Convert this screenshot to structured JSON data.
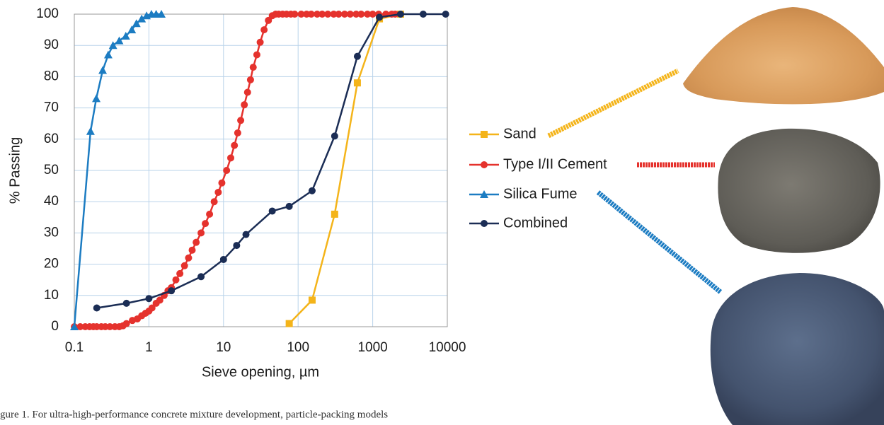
{
  "chart_data": {
    "type": "line",
    "x_scale": "log",
    "xlabel": "Sieve opening, µm",
    "ylabel": "% Passing",
    "xlim": [
      0.1,
      10000
    ],
    "xticks": [
      0.1,
      1,
      10,
      100,
      1000,
      10000
    ],
    "ylim": [
      0,
      100
    ],
    "yticks": [
      0,
      10,
      20,
      30,
      40,
      50,
      60,
      70,
      80,
      90,
      100
    ],
    "grid": true,
    "legend": "right",
    "series": [
      {
        "name": "Sand",
        "color": "#f4b41a",
        "marker": "square",
        "x": [
          76,
          154,
          309,
          623,
          1230,
          2360
        ],
        "values": [
          1,
          8.5,
          36,
          78,
          98.5,
          100
        ]
      },
      {
        "name": "Type I/II Cement",
        "color": "#e5322d",
        "marker": "circle",
        "x": [
          0.1,
          0.12,
          0.14,
          0.16,
          0.18,
          0.2,
          0.23,
          0.26,
          0.3,
          0.35,
          0.4,
          0.45,
          0.5,
          0.6,
          0.7,
          0.8,
          0.9,
          1,
          1.1,
          1.25,
          1.4,
          1.6,
          1.8,
          2,
          2.3,
          2.6,
          3,
          3.4,
          3.8,
          4.3,
          5,
          5.7,
          6.5,
          7.5,
          8.5,
          9.5,
          11,
          12.5,
          14,
          15.5,
          17,
          19,
          21,
          23,
          25,
          28,
          31,
          35,
          40,
          45,
          50,
          55,
          62,
          70,
          80,
          90,
          110,
          130,
          150,
          180,
          210,
          250,
          300,
          350,
          420,
          500,
          600,
          700,
          850,
          1000,
          1200,
          1500,
          1800,
          2000
        ],
        "values": [
          0,
          0,
          0,
          0,
          0,
          0,
          0,
          0,
          0,
          0,
          0,
          0.3,
          1,
          2,
          2.5,
          3.5,
          4.3,
          5,
          6,
          7.5,
          8.5,
          10,
          11.5,
          12.5,
          15,
          17,
          19.5,
          22,
          24.5,
          27,
          30,
          33,
          36,
          40,
          43,
          46,
          50,
          54,
          58,
          62,
          66,
          71,
          75,
          79,
          83,
          87,
          91,
          95,
          98,
          99.5,
          100,
          100,
          100,
          100,
          100,
          100,
          100,
          100,
          100,
          100,
          100,
          100,
          100,
          100,
          100,
          100,
          100,
          100,
          100,
          100,
          100,
          100,
          100,
          100
        ]
      },
      {
        "name": "Silica Fume",
        "color": "#1c7cc2",
        "marker": "triangle",
        "x": [
          0.1,
          0.165,
          0.197,
          0.24,
          0.285,
          0.33,
          0.4,
          0.49,
          0.59,
          0.68,
          0.8,
          0.93,
          1.08,
          1.25,
          1.47
        ],
        "values": [
          0,
          62.5,
          73,
          82,
          87,
          90,
          91.5,
          93,
          95,
          97,
          98.5,
          99.5,
          100,
          100,
          100
        ]
      },
      {
        "name": "Combined",
        "color": "#1b2d55",
        "marker": "circle",
        "x": [
          0.2,
          0.5,
          1,
          2,
          5,
          10,
          15,
          20,
          45,
          76,
          154,
          309,
          623,
          1230,
          2360,
          4750,
          9500
        ],
        "values": [
          6,
          7.5,
          9,
          11.5,
          16,
          21.5,
          26,
          29.5,
          37,
          38.5,
          43.5,
          61,
          86.5,
          99,
          100,
          100,
          100
        ]
      }
    ],
    "caption": "gure 1. For ultra-high-performance concrete mixture development, particle-packing models"
  }
}
